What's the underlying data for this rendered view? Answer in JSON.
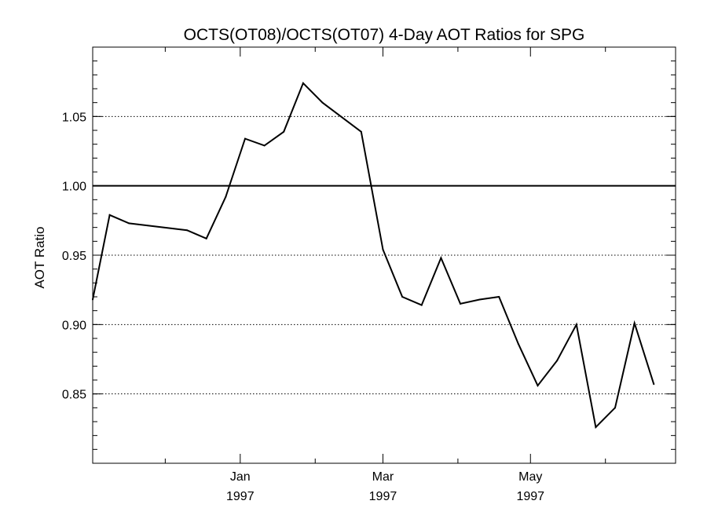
{
  "chart_data": {
    "type": "line",
    "title": "OCTS(OT08)/OCTS(OT07) 4-Day AOT Ratios for SPG",
    "xlabel": "",
    "ylabel": "AOT Ratio",
    "x_range": [
      "1996-11-01",
      "1997-06-30"
    ],
    "ylim": [
      0.8,
      1.1
    ],
    "y_ticks": [
      0.85,
      0.9,
      0.95,
      1.0,
      1.05
    ],
    "y_tick_labels": [
      "0.85",
      "0.90",
      "0.95",
      "1.00",
      "1.05"
    ],
    "y_gridlines": [
      0.85,
      0.9,
      0.95,
      1.05
    ],
    "reference_line": 1.0,
    "x_major_ticks": [
      {
        "date": "1997-01-01",
        "month": "Jan",
        "year": "1997"
      },
      {
        "date": "1997-03-01",
        "month": "Mar",
        "year": "1997"
      },
      {
        "date": "1997-05-01",
        "month": "May",
        "year": "1997"
      }
    ],
    "x_minor_ticks": [
      "1996-12-01",
      "1997-02-01",
      "1997-04-01",
      "1997-06-01"
    ],
    "series": [
      {
        "color": "#000000",
        "points": [
          {
            "x": "1996-11-01",
            "y": 0.918
          },
          {
            "x": "1996-11-08",
            "y": 0.979
          },
          {
            "x": "1996-11-16",
            "y": 0.973
          },
          {
            "x": "1996-12-10",
            "y": 0.968
          },
          {
            "x": "1996-12-18",
            "y": 0.962
          },
          {
            "x": "1996-12-26",
            "y": 0.992
          },
          {
            "x": "1997-01-03",
            "y": 1.034
          },
          {
            "x": "1997-01-11",
            "y": 1.029
          },
          {
            "x": "1997-01-19",
            "y": 1.039
          },
          {
            "x": "1997-01-27",
            "y": 1.074
          },
          {
            "x": "1997-02-04",
            "y": 1.06
          },
          {
            "x": "1997-02-20",
            "y": 1.039
          },
          {
            "x": "1997-03-01",
            "y": 0.954
          },
          {
            "x": "1997-03-09",
            "y": 0.92
          },
          {
            "x": "1997-03-17",
            "y": 0.914
          },
          {
            "x": "1997-03-25",
            "y": 0.948
          },
          {
            "x": "1997-04-02",
            "y": 0.915
          },
          {
            "x": "1997-04-10",
            "y": 0.918
          },
          {
            "x": "1997-04-18",
            "y": 0.92
          },
          {
            "x": "1997-04-26",
            "y": 0.886
          },
          {
            "x": "1997-05-04",
            "y": 0.856
          },
          {
            "x": "1997-05-12",
            "y": 0.874
          },
          {
            "x": "1997-05-20",
            "y": 0.9
          },
          {
            "x": "1997-05-28",
            "y": 0.826
          },
          {
            "x": "1997-06-05",
            "y": 0.84
          },
          {
            "x": "1997-06-13",
            "y": 0.901
          },
          {
            "x": "1997-06-21",
            "y": 0.857
          }
        ]
      }
    ]
  }
}
